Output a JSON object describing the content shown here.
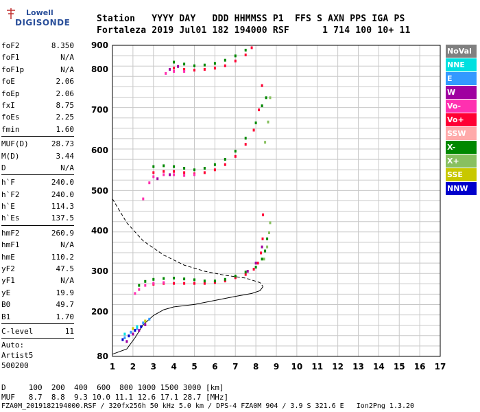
{
  "logo": {
    "line1": "Lowell",
    "line2": "DIGISONDE"
  },
  "header": {
    "line1": "Station   YYYY DAY   DDD HHMMSS P1  FFS S AXN PPS IGA PS",
    "line2": "Fortaleza 2019 Jul01 182 194000 RSF      1 714 100 10+ 11"
  },
  "params": {
    "group1": [
      {
        "name": "foF2",
        "value": "8.350"
      },
      {
        "name": "foF1",
        "value": "N/A"
      },
      {
        "name": "foF1p",
        "value": "N/A"
      },
      {
        "name": "foE",
        "value": "2.06"
      },
      {
        "name": "foEp",
        "value": "2.06"
      },
      {
        "name": "fxI",
        "value": "8.75"
      },
      {
        "name": "foEs",
        "value": "2.25"
      },
      {
        "name": "fmin",
        "value": "1.60"
      }
    ],
    "group2": [
      {
        "name": "MUF(D)",
        "value": "28.73"
      },
      {
        "name": "M(D)",
        "value": "3.44"
      },
      {
        "name": "D",
        "value": "N/A"
      }
    ],
    "group3": [
      {
        "name": "h`F",
        "value": "240.0"
      },
      {
        "name": "h`F2",
        "value": "240.0"
      },
      {
        "name": "h`E",
        "value": "114.3"
      },
      {
        "name": "h`Es",
        "value": "137.5"
      }
    ],
    "group4": [
      {
        "name": "hmF2",
        "value": "260.9"
      },
      {
        "name": "hmF1",
        "value": "N/A"
      },
      {
        "name": "hmE",
        "value": "110.2"
      },
      {
        "name": "yF2",
        "value": "47.5"
      },
      {
        "name": "yF1",
        "value": "N/A"
      },
      {
        "name": "yE",
        "value": "19.9"
      },
      {
        "name": "B0",
        "value": "49.7"
      },
      {
        "name": "B1",
        "value": "1.70"
      }
    ],
    "group5": [
      {
        "name": "C-level",
        "value": "11"
      }
    ],
    "auto": [
      "Auto:",
      "Artist5",
      "500200"
    ]
  },
  "legend": [
    {
      "label": "NoVal",
      "color": "#808080"
    },
    {
      "label": "NNE",
      "color": "#00e0e0"
    },
    {
      "label": "E",
      "color": "#3399ff"
    },
    {
      "label": "W",
      "color": "#a000a0"
    },
    {
      "label": "Vo-",
      "color": "#ff30b0"
    },
    {
      "label": "Vo+",
      "color": "#ff0033"
    },
    {
      "label": "SSW",
      "color": "#ffaaaa"
    },
    {
      "label": "X-",
      "color": "#008800"
    },
    {
      "label": "X+",
      "color": "#88c060"
    },
    {
      "label": "SSE",
      "color": "#c8c800"
    },
    {
      "label": "NNW",
      "color": "#0000cc"
    }
  ],
  "footer": {
    "line1": "D     100  200  400  600  800 1000 1500 3000 [km]",
    "line2": "MUF   8.7  8.8  9.3 10.0 11.1 12.6 17.1 28.7 [MHz]",
    "line3": "FZA0M_2019182194000.RSF / 320fx256h 50 kHz 5.0 km / DPS-4 FZA0M 904 / 3.9 S 321.6 E   Ion2Png 1.3.20"
  },
  "chart_data": {
    "type": "scatter",
    "xlim": [
      1,
      17
    ],
    "ylim": [
      80,
      900
    ],
    "x_ticks": [
      "1",
      "2",
      "3",
      "4",
      "5",
      "6",
      "7",
      "8",
      "9",
      "10",
      "11",
      "12",
      "13",
      "14",
      "15",
      "16",
      "17"
    ],
    "y_ticks": [
      "80",
      "200",
      "300",
      "400",
      "500",
      "600",
      "700",
      "800",
      "900"
    ],
    "grid": true,
    "legend_position": "right",
    "series": [
      {
        "color": "#ff0033",
        "points": [
          [
            3.0,
            268
          ],
          [
            3.5,
            270
          ],
          [
            4.0,
            270
          ],
          [
            4.5,
            270
          ],
          [
            5.0,
            270
          ],
          [
            5.5,
            270
          ],
          [
            6.0,
            272
          ],
          [
            6.5,
            276
          ],
          [
            7.0,
            284
          ],
          [
            7.5,
            292
          ],
          [
            7.9,
            305
          ],
          [
            8.1,
            320
          ],
          [
            8.25,
            345
          ],
          [
            8.33,
            380
          ],
          [
            8.35,
            440
          ],
          [
            3.0,
            545
          ],
          [
            3.5,
            548
          ],
          [
            4.0,
            548
          ],
          [
            4.5,
            545
          ],
          [
            5.0,
            542
          ],
          [
            5.5,
            545
          ],
          [
            6.0,
            552
          ],
          [
            6.5,
            565
          ],
          [
            7.0,
            585
          ],
          [
            7.5,
            615
          ],
          [
            7.9,
            650
          ],
          [
            8.15,
            700
          ],
          [
            8.3,
            760
          ],
          [
            4.0,
            805
          ],
          [
            4.5,
            800
          ],
          [
            5.0,
            798
          ],
          [
            5.5,
            800
          ],
          [
            6.0,
            805
          ],
          [
            6.5,
            815
          ],
          [
            7.0,
            835
          ],
          [
            7.5,
            860
          ],
          [
            7.8,
            890
          ]
        ]
      },
      {
        "color": "#ff30b0",
        "points": [
          [
            2.1,
            245
          ],
          [
            2.3,
            255
          ],
          [
            2.6,
            265
          ],
          [
            3.0,
            270
          ],
          [
            3.5,
            272
          ],
          [
            2.5,
            480
          ],
          [
            2.8,
            520
          ],
          [
            3.0,
            535
          ],
          [
            3.5,
            540
          ],
          [
            4.0,
            540
          ],
          [
            4.5,
            538
          ],
          [
            5.0,
            540
          ],
          [
            3.6,
            790
          ],
          [
            4.0,
            795
          ],
          [
            4.5,
            795
          ]
        ]
      },
      {
        "color": "#008800",
        "points": [
          [
            2.3,
            265
          ],
          [
            2.6,
            275
          ],
          [
            3.0,
            280
          ],
          [
            3.5,
            282
          ],
          [
            4.0,
            283
          ],
          [
            4.5,
            281
          ],
          [
            5.0,
            279
          ],
          [
            5.5,
            276
          ],
          [
            6.0,
            276
          ],
          [
            6.5,
            280
          ],
          [
            7.0,
            288
          ],
          [
            7.5,
            298
          ],
          [
            8.0,
            310
          ],
          [
            8.3,
            330
          ],
          [
            8.45,
            350
          ],
          [
            8.55,
            380
          ],
          [
            3.0,
            560
          ],
          [
            3.5,
            562
          ],
          [
            4.0,
            560
          ],
          [
            4.5,
            556
          ],
          [
            5.0,
            552
          ],
          [
            5.5,
            556
          ],
          [
            6.0,
            565
          ],
          [
            6.5,
            578
          ],
          [
            7.0,
            598
          ],
          [
            7.5,
            630
          ],
          [
            8.0,
            668
          ],
          [
            8.3,
            710
          ],
          [
            8.5,
            730
          ],
          [
            4.0,
            830
          ],
          [
            4.5,
            822
          ],
          [
            5.0,
            815
          ],
          [
            5.5,
            818
          ],
          [
            6.0,
            825
          ],
          [
            6.5,
            838
          ],
          [
            7.0,
            856
          ],
          [
            7.5,
            880
          ]
        ]
      },
      {
        "color": "#88c060",
        "points": [
          [
            8.4,
            330
          ],
          [
            8.55,
            360
          ],
          [
            8.65,
            395
          ],
          [
            8.7,
            420
          ],
          [
            8.45,
            620
          ],
          [
            8.6,
            670
          ],
          [
            8.7,
            730
          ]
        ]
      },
      {
        "color": "#a000a0",
        "points": [
          [
            1.7,
            120
          ],
          [
            2.0,
            140
          ],
          [
            2.3,
            150
          ],
          [
            2.6,
            165
          ],
          [
            7.6,
            300
          ],
          [
            8.0,
            320
          ],
          [
            8.3,
            360
          ],
          [
            3.2,
            530
          ],
          [
            3.8,
            540
          ],
          [
            3.8,
            800
          ],
          [
            4.2,
            812
          ]
        ]
      },
      {
        "color": "#3399ff",
        "points": [
          [
            1.6,
            130
          ],
          [
            1.9,
            145
          ],
          [
            2.2,
            155
          ],
          [
            2.5,
            170
          ],
          [
            2.8,
            180
          ]
        ]
      },
      {
        "color": "#0000cc",
        "points": [
          [
            1.5,
            125
          ],
          [
            1.8,
            135
          ],
          [
            2.1,
            150
          ],
          [
            2.4,
            160
          ]
        ]
      },
      {
        "color": "#00e0e0",
        "points": [
          [
            1.6,
            140
          ],
          [
            2.2,
            160
          ]
        ]
      },
      {
        "color": "#c8c800",
        "points": [
          [
            2.0,
            155
          ],
          [
            2.6,
            175
          ]
        ]
      }
    ],
    "profile_dashed": [
      [
        1,
        480
      ],
      [
        1.7,
        420
      ],
      [
        2.5,
        375
      ],
      [
        3.5,
        340
      ],
      [
        4.5,
        315
      ],
      [
        5.5,
        300
      ],
      [
        6.5,
        290
      ],
      [
        7.5,
        283
      ],
      [
        8.2,
        272
      ],
      [
        8.35,
        262
      ]
    ],
    "profile_solid": [
      [
        1,
        86
      ],
      [
        1.7,
        100
      ],
      [
        2.1,
        130
      ],
      [
        2.5,
        165
      ],
      [
        3.0,
        190
      ],
      [
        3.5,
        205
      ],
      [
        4.0,
        212
      ],
      [
        5.0,
        218
      ],
      [
        6.0,
        228
      ],
      [
        7.0,
        238
      ],
      [
        7.8,
        245
      ],
      [
        8.2,
        252
      ],
      [
        8.35,
        262
      ]
    ]
  }
}
